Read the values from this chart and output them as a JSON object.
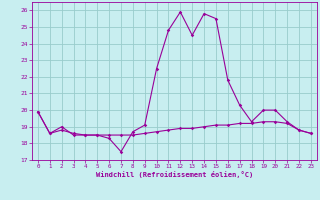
{
  "title": "",
  "xlabel": "Windchill (Refroidissement éolien,°C)",
  "bg_color": "#c8eef0",
  "grid_color": "#99cccc",
  "line_color": "#990099",
  "xlim": [
    -0.5,
    23.5
  ],
  "ylim": [
    17,
    26.5
  ],
  "yticks": [
    17,
    18,
    19,
    20,
    21,
    22,
    23,
    24,
    25,
    26
  ],
  "xticks": [
    0,
    1,
    2,
    3,
    4,
    5,
    6,
    7,
    8,
    9,
    10,
    11,
    12,
    13,
    14,
    15,
    16,
    17,
    18,
    19,
    20,
    21,
    22,
    23
  ],
  "line1_x": [
    0,
    1,
    2,
    3,
    4,
    5,
    6,
    7,
    8,
    9,
    10,
    11,
    12,
    13,
    14,
    15,
    16,
    17,
    18,
    19,
    20,
    21,
    22,
    23
  ],
  "line1_y": [
    19.9,
    18.6,
    19.0,
    18.5,
    18.5,
    18.5,
    18.3,
    17.5,
    18.7,
    19.1,
    22.5,
    24.8,
    25.9,
    24.5,
    25.8,
    25.5,
    21.8,
    20.3,
    19.3,
    20.0,
    20.0,
    19.3,
    18.8,
    18.6
  ],
  "line2_x": [
    0,
    1,
    2,
    3,
    4,
    5,
    6,
    7,
    8,
    9,
    10,
    11,
    12,
    13,
    14,
    15,
    16,
    17,
    18,
    19,
    20,
    21,
    22,
    23
  ],
  "line2_y": [
    19.9,
    18.6,
    18.8,
    18.6,
    18.5,
    18.5,
    18.5,
    18.5,
    18.5,
    18.6,
    18.7,
    18.8,
    18.9,
    18.9,
    19.0,
    19.1,
    19.1,
    19.2,
    19.2,
    19.3,
    19.3,
    19.2,
    18.8,
    18.6
  ]
}
